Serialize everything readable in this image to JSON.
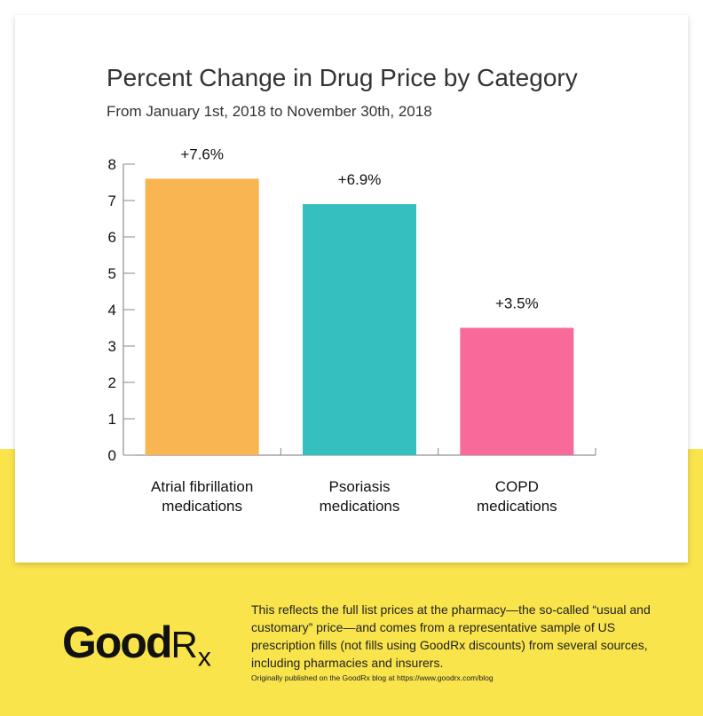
{
  "chart_data": {
    "type": "bar",
    "title": "Percent Change in Drug Price by Category",
    "subtitle": "From January 1st, 2018 to November 30th, 2018",
    "categories": [
      "Atrial fibrillation medications",
      "Psoriasis medications",
      "COPD medications"
    ],
    "category_lines": [
      [
        "Atrial fibrillation",
        "medications"
      ],
      [
        "Psoriasis",
        "medications"
      ],
      [
        "COPD",
        "medications"
      ]
    ],
    "values": [
      7.6,
      6.9,
      3.5
    ],
    "data_labels": [
      "+7.6%",
      "+6.9%",
      "+3.5%"
    ],
    "colors": [
      "#F8B552",
      "#35BFBF",
      "#F76A9A"
    ],
    "ylim": [
      0,
      8
    ],
    "yticks": [
      "0",
      "1",
      "2",
      "3",
      "4",
      "5",
      "6",
      "7",
      "8"
    ],
    "grid": false,
    "xlabel": "",
    "ylabel": ""
  },
  "footer": {
    "logo": "GoodRx",
    "note": "This reflects the full list prices at the pharmacy—the so-called “usual and customary” price—and comes from a representative sample of US prescription fills (not fills using GoodRx discounts) from several sources, including pharmacies and insurers.",
    "credit": "Originally published on the GoodRx blog at https://www.goodrx.com/blog"
  },
  "colors": {
    "background_band": "#F9E44C"
  }
}
